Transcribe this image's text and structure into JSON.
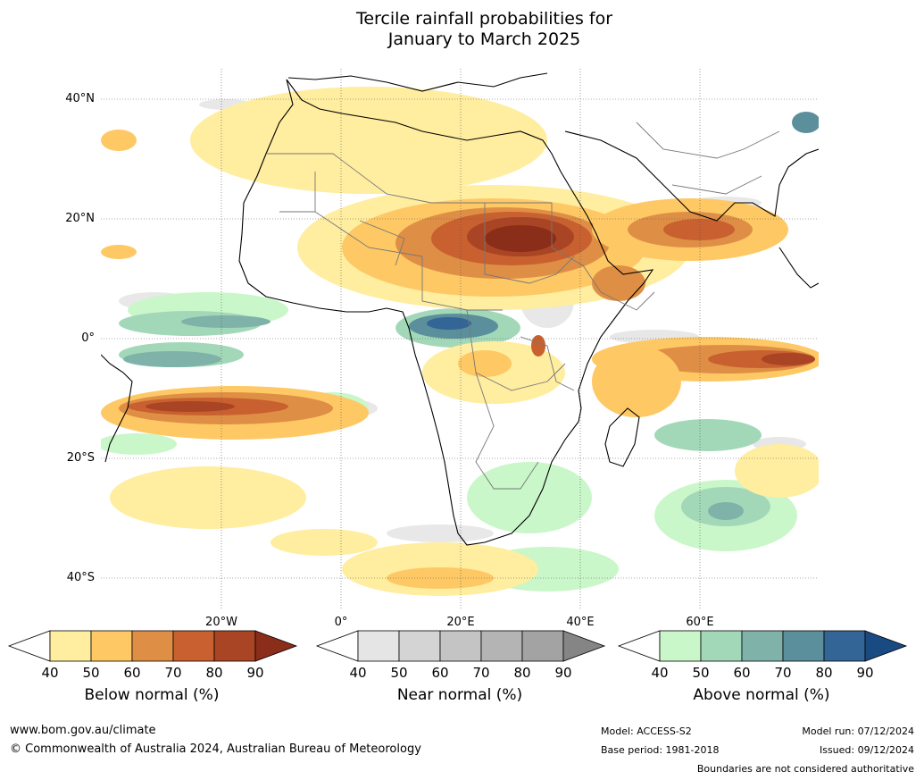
{
  "title": {
    "line1": "Tercile rainfall probabilities for",
    "line2": "January to March 2025"
  },
  "map": {
    "lat_labels": [
      "40°N",
      "20°N",
      "0°",
      "20°S",
      "40°S"
    ],
    "lon_labels": [
      "20°W",
      "0°",
      "20°E",
      "40°E",
      "60°E"
    ],
    "shaded_regions": [
      {
        "category": "below",
        "level": "90",
        "area": "Sahel / Chad–Sudan"
      },
      {
        "category": "below",
        "level": "80",
        "area": "Equatorial Indian Ocean"
      },
      {
        "category": "below",
        "level": "80",
        "area": "South Atlantic band"
      },
      {
        "category": "below",
        "level": "80",
        "area": "Arabian Sea / Yemen"
      },
      {
        "category": "above",
        "level": "70",
        "area": "Central Africa / Congo"
      },
      {
        "category": "above",
        "level": "60",
        "area": "Gulf of Guinea / equatorial Atlantic"
      },
      {
        "category": "above",
        "level": "60",
        "area": "Southwest Indian Ocean"
      }
    ]
  },
  "colorbars": [
    {
      "label": "Below normal (%)",
      "ticks": [
        "40",
        "50",
        "60",
        "70",
        "80",
        "90"
      ],
      "colors": [
        "#ffeda0",
        "#fec865",
        "#df8f45",
        "#c8602f",
        "#a94525",
        "#8a2d19"
      ]
    },
    {
      "label": "Near normal (%)",
      "ticks": [
        "40",
        "50",
        "60",
        "70",
        "80",
        "90"
      ],
      "colors": [
        "#e5e5e5",
        "#d4d4d4",
        "#c4c4c4",
        "#b4b4b4",
        "#a3a3a3",
        "#858585"
      ]
    },
    {
      "label": "Above normal (%)",
      "ticks": [
        "40",
        "50",
        "60",
        "70",
        "80",
        "90"
      ],
      "colors": [
        "#c9f7c9",
        "#a2d8b8",
        "#7fb3aa",
        "#5b8f9c",
        "#336596",
        "#1a4a82"
      ]
    }
  ],
  "footer": {
    "website": "www.bom.gov.au/climate",
    "copyright": "© Commonwealth of Australia 2024, Australian Bureau of Meteorology",
    "model": "Model: ACCESS-S2",
    "base_period": "Base period: 1981-2018",
    "model_run": "Model run: 07/12/2024",
    "issued": "Issued: 09/12/2024",
    "disclaimer": "Boundaries are not considered authoritative"
  }
}
